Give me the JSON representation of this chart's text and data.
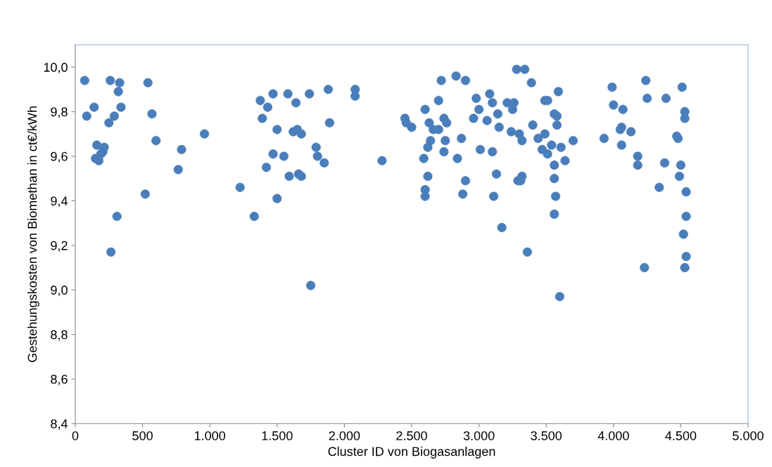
{
  "chart_data": {
    "type": "scatter",
    "xlabel": "Cluster ID von Biogasanlagen",
    "ylabel": "Gestehungskosten von Biomethan in ct€/kWh",
    "xlim": [
      0,
      5000
    ],
    "ylim": [
      8.4,
      10.1
    ],
    "xticks": [
      {
        "value": 0,
        "label": "0"
      },
      {
        "value": 500,
        "label": "500"
      },
      {
        "value": 1000,
        "label": "1.000"
      },
      {
        "value": 1500,
        "label": "1.500"
      },
      {
        "value": 2000,
        "label": "2.000"
      },
      {
        "value": 2500,
        "label": "2.500"
      },
      {
        "value": 3000,
        "label": "3.000"
      },
      {
        "value": 3500,
        "label": "3.500"
      },
      {
        "value": 4000,
        "label": "4.000"
      },
      {
        "value": 4500,
        "label": "4.500"
      },
      {
        "value": 5000,
        "label": "5.000"
      }
    ],
    "yticks": [
      {
        "value": 8.4,
        "label": "8,4"
      },
      {
        "value": 8.6,
        "label": "8,6"
      },
      {
        "value": 8.8,
        "label": "8,8"
      },
      {
        "value": 9.0,
        "label": "9,0"
      },
      {
        "value": 9.2,
        "label": "9,2"
      },
      {
        "value": 9.4,
        "label": "9,4"
      },
      {
        "value": 9.6,
        "label": "9,6"
      },
      {
        "value": 9.8,
        "label": "9,8"
      },
      {
        "value": 10.0,
        "label": "10,0"
      }
    ],
    "grid": false,
    "marker": "circle",
    "series": [
      {
        "color": "#4a7ebb",
        "x": [
          70,
          85,
          140,
          150,
          160,
          175,
          190,
          215,
          205,
          250,
          260,
          265,
          290,
          310,
          320,
          330,
          340,
          520,
          540,
          570,
          600,
          765,
          790,
          960,
          1225,
          1330,
          1375,
          1390,
          1420,
          1430,
          1470,
          1470,
          1500,
          1500,
          1550,
          1580,
          1590,
          1620,
          1640,
          1650,
          1660,
          1680,
          1680,
          1740,
          1750,
          1790,
          1800,
          1850,
          1880,
          1890,
          2080,
          2080,
          2280,
          2450,
          2460,
          2500,
          2590,
          2600,
          2600,
          2600,
          2620,
          2620,
          2630,
          2640,
          2660,
          2700,
          2700,
          2720,
          2740,
          2740,
          2750,
          2760,
          2830,
          2840,
          2870,
          2880,
          2900,
          2900,
          2960,
          2980,
          3000,
          3010,
          3060,
          3080,
          3100,
          3100,
          3110,
          3130,
          3140,
          3150,
          3170,
          3210,
          3240,
          3250,
          3260,
          3280,
          3290,
          3300,
          3310,
          3320,
          3320,
          3340,
          3360,
          3390,
          3400,
          3440,
          3470,
          3490,
          3490,
          3510,
          3510,
          3540,
          3560,
          3560,
          3560,
          3570,
          3560,
          3580,
          3580,
          3590,
          3600,
          3610,
          3640,
          3700,
          3930,
          3990,
          4000,
          4050,
          4060,
          4060,
          4070,
          4130,
          4180,
          4180,
          4230,
          4240,
          4250,
          4340,
          4380,
          4390,
          4470,
          4480,
          4490,
          4500,
          4510,
          4530,
          4530,
          4540,
          4540,
          4520,
          4540,
          4530
        ],
        "values": [
          9.94,
          9.78,
          9.82,
          9.59,
          9.65,
          9.58,
          9.61,
          9.64,
          9.62,
          9.75,
          9.94,
          9.17,
          9.78,
          9.33,
          9.89,
          9.93,
          9.82,
          9.43,
          9.93,
          9.79,
          9.67,
          9.54,
          9.63,
          9.7,
          9.46,
          9.33,
          9.85,
          9.77,
          9.55,
          9.82,
          9.88,
          9.61,
          9.72,
          9.41,
          9.6,
          9.88,
          9.51,
          9.71,
          9.84,
          9.72,
          9.52,
          9.7,
          9.51,
          9.88,
          9.02,
          9.64,
          9.6,
          9.57,
          9.9,
          9.75,
          9.9,
          9.87,
          9.58,
          9.77,
          9.75,
          9.73,
          9.59,
          9.81,
          9.42,
          9.45,
          9.51,
          9.64,
          9.75,
          9.67,
          9.72,
          9.85,
          9.72,
          9.94,
          9.77,
          9.62,
          9.67,
          9.75,
          9.96,
          9.59,
          9.68,
          9.43,
          9.94,
          9.49,
          9.77,
          9.86,
          9.81,
          9.63,
          9.76,
          9.88,
          9.62,
          9.84,
          9.42,
          9.52,
          9.79,
          9.73,
          9.28,
          9.84,
          9.71,
          9.81,
          9.84,
          9.99,
          9.49,
          9.7,
          9.49,
          9.51,
          9.67,
          9.99,
          9.17,
          9.93,
          9.74,
          9.68,
          9.63,
          9.7,
          9.85,
          9.85,
          9.61,
          9.65,
          9.79,
          9.56,
          9.5,
          9.42,
          9.34,
          9.78,
          9.74,
          9.89,
          8.97,
          9.64,
          9.58,
          9.67,
          9.68,
          9.91,
          9.83,
          9.72,
          9.73,
          9.65,
          9.81,
          9.71,
          9.6,
          9.56,
          9.1,
          9.94,
          9.86,
          9.46,
          9.57,
          9.86,
          9.69,
          9.68,
          9.51,
          9.56,
          9.91,
          9.8,
          9.77,
          9.44,
          9.33,
          9.25,
          9.15,
          9.1
        ]
      }
    ]
  }
}
